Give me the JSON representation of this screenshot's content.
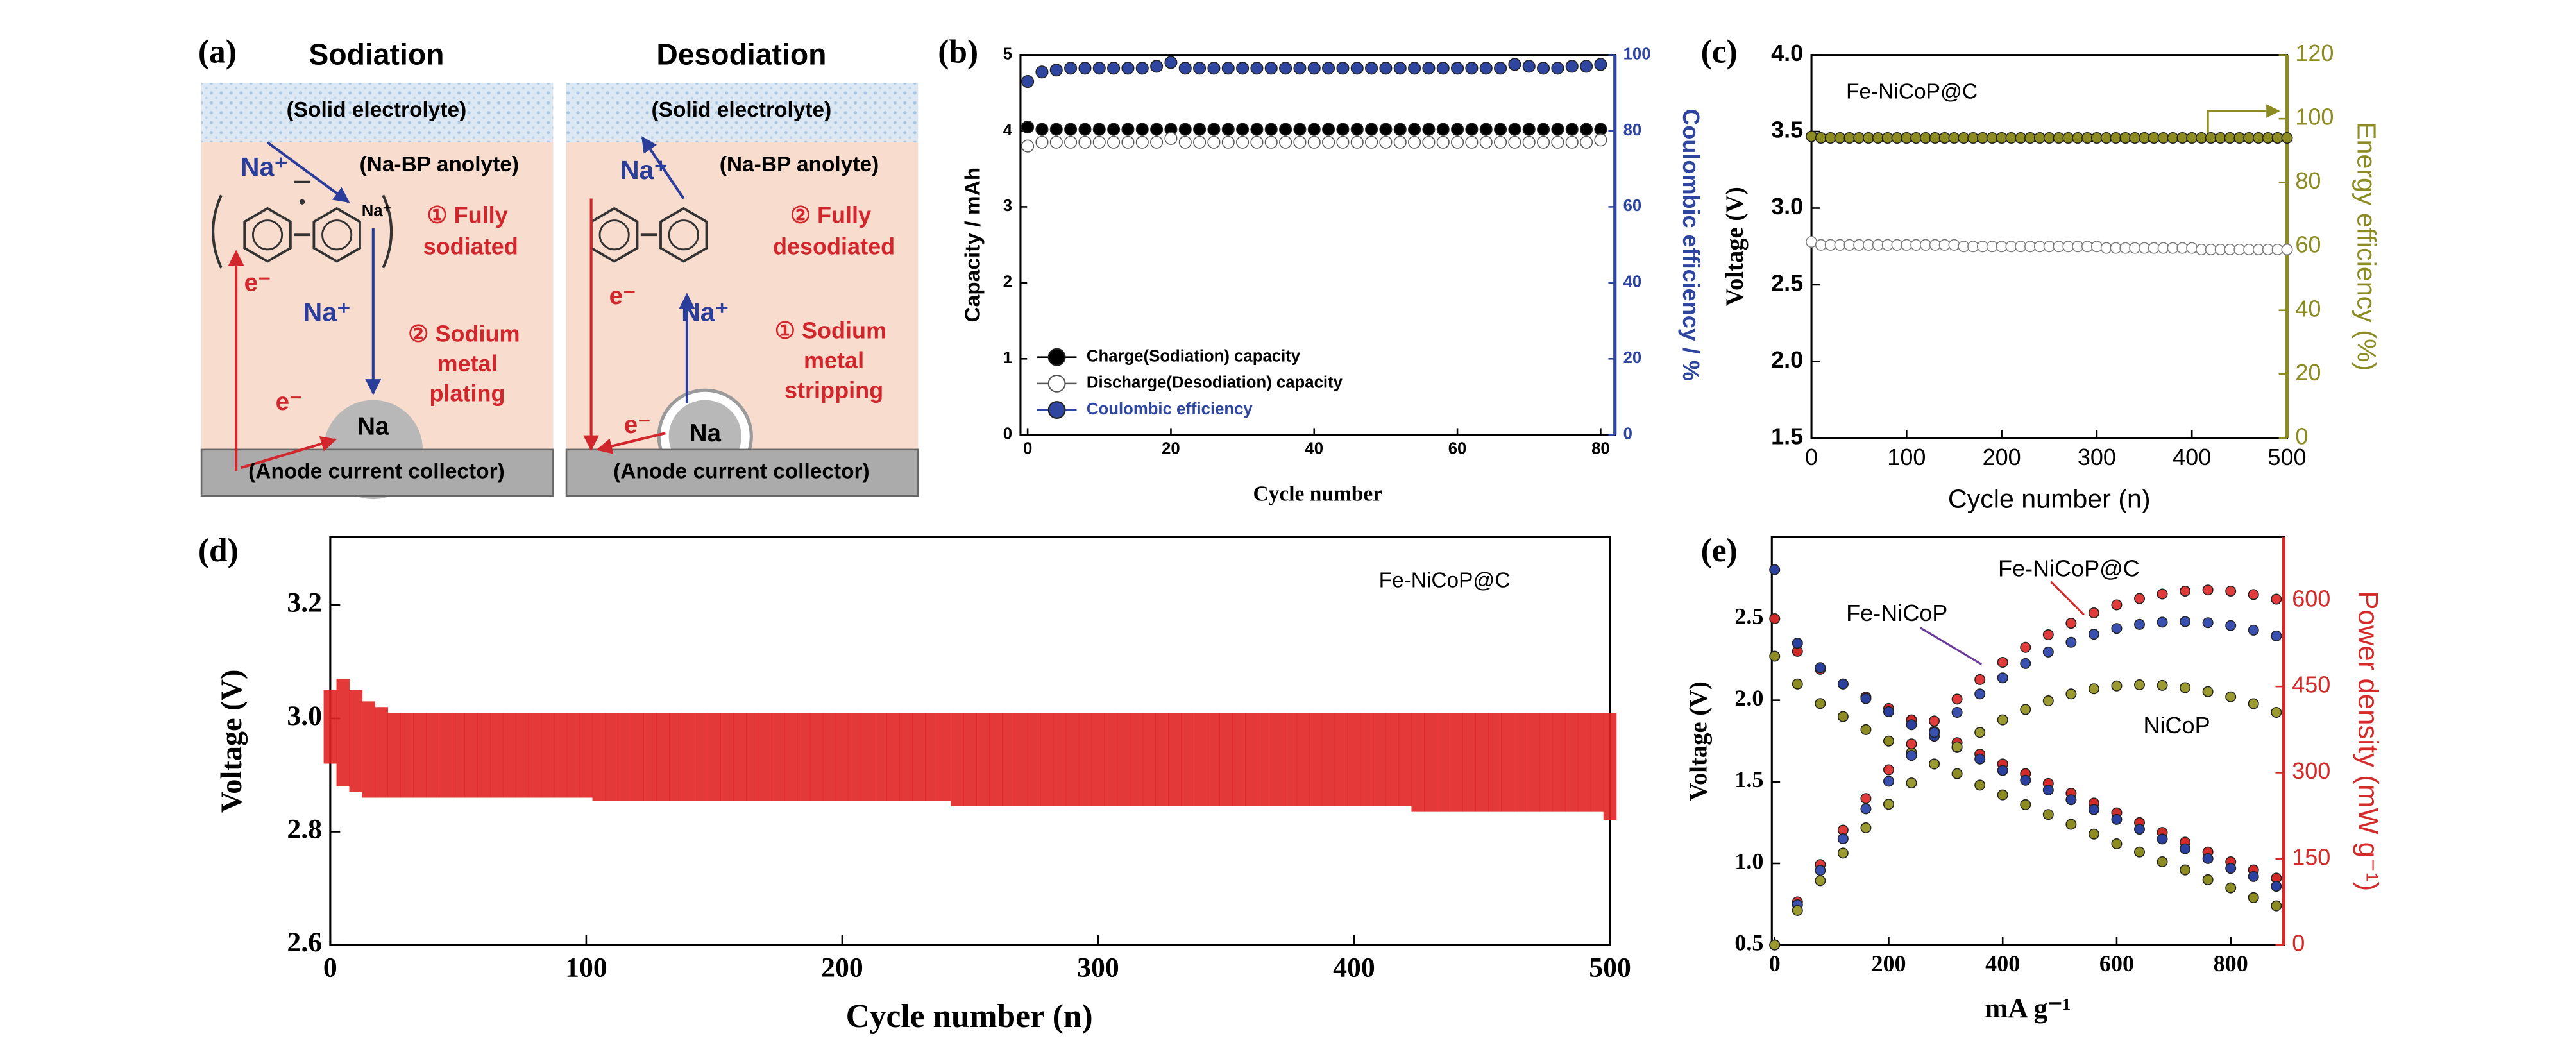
{
  "panel_a": {
    "label": "(a)",
    "sodiation": {
      "title": "Sodiation",
      "electrolyte": "(Solid electrolyte)",
      "anolyte": "(Na-BP anolyte)",
      "ion_top": "Na⁺",
      "ion_complex": "Na⁺",
      "ion_mid": "Na⁺",
      "step_1": [
        "① Fully",
        "sodiated"
      ],
      "step_2": [
        "② Sodium",
        "metal",
        "plating"
      ],
      "electron_top": "e⁻",
      "electron_bottom": "e⁻",
      "metal": "Na",
      "collector": "(Anode current collector)"
    },
    "desodiation": {
      "title": "Desodiation",
      "electrolyte": "(Solid electrolyte)",
      "anolyte": "(Na-BP anolyte)",
      "ion_top": "Na⁺",
      "ion_mid": "Na⁺",
      "step_1": [
        "① Sodium",
        "metal",
        "stripping"
      ],
      "step_2": [
        "② Fully",
        "desodiated"
      ],
      "electron_top": "e⁻",
      "electron_bottom": "e⁻",
      "metal": "Na",
      "collector": "(Anode current collector)"
    }
  },
  "chart_data": [
    {
      "type": "scatter",
      "panel": "(b)",
      "xlabel": "Cycle number",
      "ylabel": "Capacity / mAh",
      "y2label": "Coulombic efficiency / %",
      "legend": "lower left",
      "xlim": [
        -1,
        82
      ],
      "xticks": [
        0,
        20,
        40,
        60,
        80
      ],
      "ylim": [
        0,
        5
      ],
      "yticks": [
        0,
        1,
        2,
        3,
        4,
        5
      ],
      "y2lim": [
        0,
        100
      ],
      "y2ticks": [
        0,
        20,
        40,
        60,
        80,
        100
      ],
      "x": [
        0,
        2,
        4,
        6,
        8,
        10,
        12,
        14,
        16,
        18,
        20,
        22,
        24,
        26,
        28,
        30,
        32,
        34,
        36,
        38,
        40,
        42,
        44,
        46,
        48,
        50,
        52,
        54,
        56,
        58,
        60,
        62,
        64,
        66,
        68,
        70,
        72,
        74,
        76,
        78,
        80
      ],
      "series": [
        {
          "name": "Charge(Sodiation) capacity",
          "color": "#000000",
          "values": [
            4.05,
            4.02,
            4.02,
            4.02,
            4.02,
            4.02,
            4.02,
            4.02,
            4.02,
            4.02,
            4.02,
            4.02,
            4.02,
            4.02,
            4.02,
            4.02,
            4.02,
            4.02,
            4.02,
            4.02,
            4.02,
            4.02,
            4.02,
            4.02,
            4.02,
            4.02,
            4.02,
            4.02,
            4.02,
            4.02,
            4.02,
            4.02,
            4.02,
            4.02,
            4.02,
            4.02,
            4.02,
            4.02,
            4.02,
            4.02,
            4.02
          ]
        },
        {
          "name": "Discharge(Desodiation) capacity",
          "color": "#555555",
          "hollow": true,
          "values": [
            3.8,
            3.85,
            3.85,
            3.85,
            3.85,
            3.85,
            3.85,
            3.85,
            3.85,
            3.85,
            3.9,
            3.85,
            3.85,
            3.85,
            3.85,
            3.85,
            3.85,
            3.85,
            3.85,
            3.85,
            3.85,
            3.85,
            3.85,
            3.85,
            3.85,
            3.85,
            3.85,
            3.85,
            3.85,
            3.85,
            3.85,
            3.85,
            3.85,
            3.85,
            3.85,
            3.85,
            3.85,
            3.85,
            3.85,
            3.85,
            3.88
          ]
        },
        {
          "name": "Coulombic efficiency",
          "color": "#2e46a0",
          "axis": "y2",
          "values": [
            93,
            95.5,
            96,
            96.5,
            96.5,
            96.5,
            96.5,
            96.5,
            96.5,
            97,
            98,
            96.5,
            96.5,
            96.5,
            96.5,
            96.5,
            96.5,
            96.5,
            96.5,
            96.5,
            96.5,
            96.5,
            96.5,
            96.5,
            96.5,
            96.5,
            96.5,
            96.5,
            96.5,
            96.5,
            96.5,
            96.5,
            96.5,
            96.5,
            97.5,
            97,
            96.5,
            96.5,
            97,
            97,
            97.5
          ]
        }
      ]
    },
    {
      "type": "scatter",
      "panel": "(c)",
      "annotation": "Fe-NiCoP@C",
      "xlabel": "Cycle number (n)",
      "ylabel": "Voltage (V)",
      "y2label": "Energy efficiency (%)",
      "xlim": [
        0,
        500
      ],
      "xticks": [
        0,
        100,
        200,
        300,
        400,
        500
      ],
      "ylim": [
        1.5,
        4.0
      ],
      "yticks": [
        1.5,
        {
          "value": 2.0,
          "label": "2.0"
        },
        2.5,
        {
          "value": 3.0,
          "label": "3.0"
        },
        3.5,
        {
          "value": 4.0,
          "label": "4.0"
        }
      ],
      "y2lim": [
        0,
        120
      ],
      "y2ticks": [
        0,
        20,
        40,
        60,
        80,
        100,
        120
      ],
      "x": [
        0,
        10,
        20,
        30,
        40,
        50,
        60,
        70,
        80,
        90,
        100,
        110,
        120,
        130,
        140,
        150,
        160,
        170,
        180,
        190,
        200,
        210,
        220,
        230,
        240,
        250,
        260,
        270,
        280,
        290,
        300,
        310,
        320,
        330,
        340,
        350,
        360,
        370,
        380,
        390,
        400,
        410,
        420,
        430,
        440,
        450,
        460,
        470,
        480,
        490,
        500
      ],
      "series": [
        {
          "color": "#7a7a7a",
          "hollow": true,
          "values": [
            2.78,
            2.76,
            2.76,
            2.76,
            2.76,
            2.76,
            2.76,
            2.76,
            2.76,
            2.76,
            2.76,
            2.76,
            2.76,
            2.76,
            2.76,
            2.76,
            2.75,
            2.75,
            2.75,
            2.75,
            2.75,
            2.75,
            2.75,
            2.75,
            2.75,
            2.75,
            2.75,
            2.75,
            2.75,
            2.75,
            2.75,
            2.74,
            2.74,
            2.74,
            2.74,
            2.74,
            2.74,
            2.74,
            2.74,
            2.74,
            2.74,
            2.73,
            2.73,
            2.73,
            2.73,
            2.73,
            2.73,
            2.73,
            2.73,
            2.73,
            2.73
          ]
        },
        {
          "color": "#8c8c23",
          "axis": "y2",
          "values": [
            94.5,
            94,
            94,
            94,
            94,
            94,
            94,
            94,
            94,
            94,
            94,
            94,
            94,
            94,
            94,
            94,
            94,
            94,
            94,
            94,
            94,
            94,
            94,
            94,
            94,
            94,
            94,
            94,
            94,
            94,
            94,
            94,
            94,
            94,
            94,
            94,
            94,
            94,
            94,
            94,
            94,
            94,
            94,
            94,
            94,
            94,
            94,
            94,
            94,
            94,
            94
          ]
        }
      ]
    },
    {
      "type": "range",
      "panel": "(d)",
      "annotation": "Fe-NiCoP@C",
      "xlabel": "Cycle number (n)",
      "ylabel": "Voltage (V)",
      "color": "#e02424",
      "xlim": [
        0,
        500
      ],
      "xticks": [
        0,
        100,
        200,
        300,
        400,
        500
      ],
      "ylim": [
        2.6,
        3.32
      ],
      "yticks": [
        2.6,
        2.8,
        {
          "value": 3.0,
          "label": "3.0"
        },
        3.2
      ],
      "x": [
        0,
        5,
        10,
        15,
        20,
        25,
        30,
        35,
        40,
        45,
        50,
        55,
        60,
        65,
        70,
        75,
        80,
        85,
        90,
        95,
        100,
        105,
        110,
        115,
        120,
        125,
        130,
        135,
        140,
        145,
        150,
        155,
        160,
        165,
        170,
        175,
        180,
        185,
        190,
        195,
        200,
        205,
        210,
        215,
        220,
        225,
        230,
        235,
        240,
        245,
        250,
        255,
        260,
        265,
        270,
        275,
        280,
        285,
        290,
        295,
        300,
        305,
        310,
        315,
        320,
        325,
        330,
        335,
        340,
        345,
        350,
        355,
        360,
        365,
        370,
        375,
        380,
        385,
        390,
        395,
        400,
        405,
        410,
        415,
        420,
        425,
        430,
        435,
        440,
        445,
        450,
        455,
        460,
        465,
        470,
        475,
        480,
        485,
        490,
        495,
        500
      ],
      "series": [
        {
          "values": [
            3.05,
            3.07,
            3.05,
            3.03,
            3.02,
            3.01,
            3.01,
            3.01,
            3.01,
            3.01,
            3.01,
            3.01,
            3.01,
            3.01,
            3.01,
            3.01,
            3.01,
            3.01,
            3.01,
            3.01,
            3.01,
            3.01,
            3.01,
            3.01,
            3.01,
            3.01,
            3.01,
            3.01,
            3.01,
            3.01,
            3.01,
            3.01,
            3.01,
            3.01,
            3.01,
            3.01,
            3.01,
            3.01,
            3.01,
            3.01,
            3.01,
            3.01,
            3.01,
            3.01,
            3.01,
            3.01,
            3.01,
            3.01,
            3.01,
            3.01,
            3.01,
            3.01,
            3.01,
            3.01,
            3.01,
            3.01,
            3.01,
            3.01,
            3.01,
            3.01,
            3.01,
            3.01,
            3.01,
            3.01,
            3.01,
            3.01,
            3.01,
            3.01,
            3.01,
            3.01,
            3.01,
            3.01,
            3.01,
            3.01,
            3.01,
            3.01,
            3.01,
            3.01,
            3.01,
            3.01,
            3.01,
            3.01,
            3.01,
            3.01,
            3.01,
            3.01,
            3.01,
            3.01,
            3.01,
            3.01,
            3.01,
            3.01,
            3.01,
            3.01,
            3.01,
            3.01,
            3.01,
            3.01,
            3.01,
            3.01,
            3.01
          ]
        },
        {
          "values": [
            2.92,
            2.88,
            2.87,
            2.86,
            2.86,
            2.86,
            2.86,
            2.86,
            2.86,
            2.86,
            2.86,
            2.86,
            2.86,
            2.86,
            2.86,
            2.86,
            2.86,
            2.86,
            2.86,
            2.86,
            2.86,
            2.855,
            2.855,
            2.855,
            2.855,
            2.855,
            2.855,
            2.855,
            2.855,
            2.855,
            2.855,
            2.855,
            2.855,
            2.855,
            2.855,
            2.855,
            2.855,
            2.855,
            2.855,
            2.855,
            2.855,
            2.855,
            2.855,
            2.855,
            2.855,
            2.855,
            2.855,
            2.855,
            2.855,
            2.845,
            2.845,
            2.845,
            2.845,
            2.845,
            2.845,
            2.845,
            2.845,
            2.845,
            2.845,
            2.845,
            2.845,
            2.845,
            2.845,
            2.845,
            2.845,
            2.845,
            2.845,
            2.845,
            2.845,
            2.845,
            2.845,
            2.845,
            2.845,
            2.845,
            2.845,
            2.845,
            2.845,
            2.845,
            2.845,
            2.845,
            2.845,
            2.845,
            2.845,
            2.845,
            2.845,
            2.835,
            2.835,
            2.835,
            2.835,
            2.835,
            2.835,
            2.835,
            2.835,
            2.835,
            2.835,
            2.835,
            2.835,
            2.835,
            2.835,
            2.835,
            2.82
          ]
        }
      ]
    },
    {
      "type": "scatter",
      "panel": "(e)",
      "xlabel": "mA g⁻¹",
      "ylabel": "Voltage (V)",
      "y2label": "Power density (mW g⁻¹)",
      "xlim": [
        -5,
        893
      ],
      "xticks": [
        0,
        200,
        400,
        600,
        800
      ],
      "ylim": [
        0.5,
        3.0
      ],
      "yticks": [
        0.5,
        {
          "value": 1.0,
          "label": "1.0"
        },
        1.5,
        {
          "value": 2.0,
          "label": "2.0"
        },
        2.5
      ],
      "y2lim": [
        0,
        710
      ],
      "y2ticks": [
        0,
        150,
        300,
        450,
        600
      ],
      "x": [
        0,
        40,
        80,
        120,
        160,
        200,
        240,
        280,
        320,
        360,
        400,
        440,
        480,
        520,
        560,
        600,
        640,
        680,
        720,
        760,
        800,
        840,
        880
      ],
      "series": [
        {
          "color": "#d42a2a",
          "values": [
            2.5,
            2.3,
            2.19,
            2.1,
            2.02,
            1.95,
            1.88,
            1.81,
            1.74,
            1.67,
            1.61,
            1.55,
            1.49,
            1.43,
            1.37,
            1.31,
            1.25,
            1.19,
            1.13,
            1.07,
            1.01,
            0.96,
            0.91
          ]
        },
        {
          "color": "#2a3f9e",
          "values": [
            2.8,
            2.35,
            2.2,
            2.1,
            2.01,
            1.93,
            1.85,
            1.78,
            1.71,
            1.64,
            1.57,
            1.51,
            1.45,
            1.39,
            1.33,
            1.27,
            1.21,
            1.15,
            1.09,
            1.03,
            0.97,
            0.92,
            0.86
          ]
        },
        {
          "color": "#8c8c23",
          "values": [
            2.27,
            2.1,
            1.98,
            1.9,
            1.82,
            1.75,
            1.68,
            1.61,
            1.55,
            1.48,
            1.42,
            1.36,
            1.3,
            1.24,
            1.18,
            1.12,
            1.07,
            1.01,
            0.96,
            0.9,
            0.85,
            0.79,
            0.74
          ]
        },
        {
          "name": "Fe-NiCoP@C",
          "color": "#e03a3a",
          "axis": "y2",
          "values": [
            0,
            75,
            140,
            200,
            255,
            305,
            350,
            390,
            428,
            462,
            492,
            518,
            540,
            560,
            578,
            592,
            603,
            611,
            616,
            618,
            616,
            610,
            602
          ]
        },
        {
          "name": "Fe-NiCoP",
          "color": "#3a50b0",
          "axis": "y2",
          "values": [
            0,
            70,
            130,
            185,
            237,
            285,
            330,
            370,
            405,
            437,
            465,
            490,
            510,
            527,
            541,
            551,
            558,
            562,
            563,
            561,
            556,
            548,
            538
          ]
        },
        {
          "name": "NiCoP",
          "color": "#9a9a30",
          "axis": "y2",
          "values": [
            0,
            60,
            112,
            160,
            204,
            245,
            282,
            315,
            345,
            370,
            392,
            410,
            425,
            437,
            446,
            451,
            453,
            452,
            448,
            441,
            432,
            420,
            405
          ]
        }
      ]
    }
  ]
}
